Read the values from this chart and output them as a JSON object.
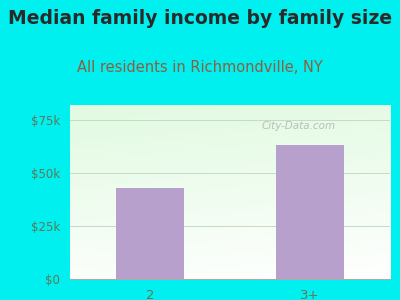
{
  "title": "Median family income by family size",
  "subtitle": "All residents in Richmondville, NY",
  "categories": [
    "2",
    "3+"
  ],
  "values": [
    43000,
    63000
  ],
  "bar_color": "#b8a0cc",
  "outer_bg": "#00efef",
  "title_color": "#2a2a2a",
  "subtitle_color": "#8b6040",
  "tick_label_color": "#5a7a5a",
  "yticks": [
    0,
    25000,
    50000,
    75000
  ],
  "ytick_labels": [
    "$0",
    "$25k",
    "$50k",
    "$75k"
  ],
  "ylim": [
    0,
    82000
  ],
  "title_fontsize": 13.5,
  "subtitle_fontsize": 10.5,
  "watermark_text": "City-Data.com"
}
